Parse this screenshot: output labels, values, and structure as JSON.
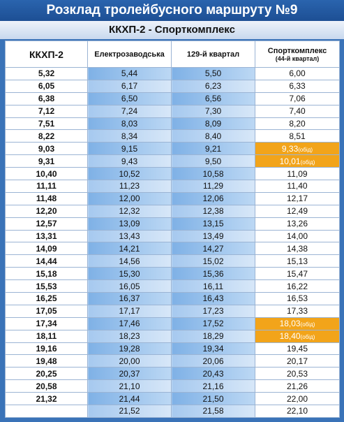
{
  "header": {
    "title": "Розклад тролейбусного маршруту №9",
    "subtitle": "ККХП-2 - Спорткомплекс"
  },
  "table": {
    "columns": [
      "ККХП-2",
      "Електрозаводська",
      "129-й квартал",
      {
        "text": "Спорткомплекс",
        "sub": "(44-й квартал)"
      }
    ],
    "rows": [
      [
        "5,32",
        "5,44",
        "5,50",
        "6,00"
      ],
      [
        "6,05",
        "6,17",
        "6,23",
        "6,33"
      ],
      [
        "6,38",
        "6,50",
        "6,56",
        "7,06"
      ],
      [
        "7,12",
        "7,24",
        "7,30",
        "7,40"
      ],
      [
        "7,51",
        "8,03",
        "8,09",
        "8,20"
      ],
      [
        "8,22",
        "8,34",
        "8,40",
        "8,51"
      ],
      [
        "9,03",
        "9,15",
        "9,21",
        {
          "text": "9,33",
          "note": "(обід)"
        }
      ],
      [
        "9,31",
        "9,43",
        "9,50",
        {
          "text": "10,01",
          "note": "(обід)"
        }
      ],
      [
        "10,40",
        "10,52",
        "10,58",
        "11,09"
      ],
      [
        "11,11",
        "11,23",
        "11,29",
        "11,40"
      ],
      [
        "11,48",
        "12,00",
        "12,06",
        "12,17"
      ],
      [
        "12,20",
        "12,32",
        "12,38",
        "12,49"
      ],
      [
        "12,57",
        "13,09",
        "13,15",
        "13,26"
      ],
      [
        "13,31",
        "13,43",
        "13,49",
        "14,00"
      ],
      [
        "14,09",
        "14,21",
        "14,27",
        "14,38"
      ],
      [
        "14,44",
        "14,56",
        "15,02",
        "15,13"
      ],
      [
        "15,18",
        "15,30",
        "15,36",
        "15,47"
      ],
      [
        "15,53",
        "16,05",
        "16,11",
        "16,22"
      ],
      [
        "16,25",
        "16,37",
        "16,43",
        "16,53"
      ],
      [
        "17,05",
        "17,17",
        "17,23",
        "17,33"
      ],
      [
        "17,34",
        "17,46",
        "17,52",
        {
          "text": "18,03",
          "note": "(обід)"
        }
      ],
      [
        "18,11",
        "18,23",
        "18,29",
        {
          "text": "18,40",
          "note": "(обід)"
        }
      ],
      [
        "19,16",
        "19,28",
        "19,34",
        "19,45"
      ],
      [
        "19,48",
        "20,00",
        "20,06",
        "20,17"
      ],
      [
        "20,25",
        "20,37",
        "20,43",
        "20,53"
      ],
      [
        "20,58",
        "21,10",
        "21,16",
        "21,26"
      ],
      [
        "21,32",
        "21,44",
        "21,50",
        "22,00"
      ],
      [
        null,
        "21,52",
        "21,58",
        "22,10"
      ]
    ]
  }
}
